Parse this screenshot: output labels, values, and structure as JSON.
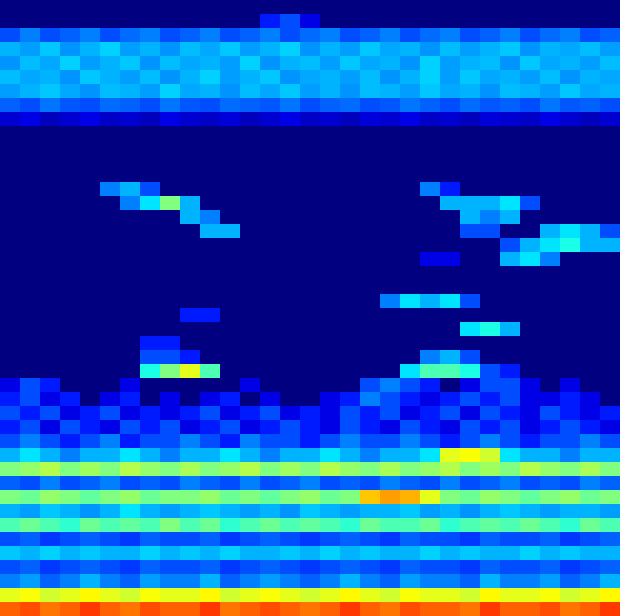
{
  "chart_data": {
    "type": "heatmap",
    "tick_labels": false,
    "xlim": [
      0,
      31
    ],
    "ylim": [
      0,
      44
    ],
    "color_range": [
      0,
      1
    ],
    "cells": [
      [
        0,
        0,
        0,
        0,
        0,
        0,
        0,
        0,
        0,
        0,
        0,
        0,
        0,
        0,
        0,
        0,
        0,
        0,
        0,
        0,
        0,
        0,
        0,
        0,
        0,
        0,
        0,
        0,
        0,
        0,
        0
      ],
      [
        0,
        0,
        0,
        0,
        0,
        0,
        0,
        0,
        0,
        0,
        0,
        0,
        0,
        0.15,
        0.2,
        0.1,
        0,
        0,
        0,
        0,
        0,
        0,
        0,
        0,
        0,
        0,
        0,
        0,
        0,
        0,
        0
      ],
      [
        0.2,
        0.25,
        0.2,
        0.22,
        0.25,
        0.2,
        0.23,
        0.25,
        0.2,
        0.22,
        0.25,
        0.2,
        0.22,
        0.25,
        0.2,
        0.23,
        0.25,
        0.2,
        0.22,
        0.25,
        0.2,
        0.23,
        0.25,
        0.2,
        0.22,
        0.25,
        0.2,
        0.23,
        0.25,
        0.2,
        0.22
      ],
      [
        0.3,
        0.28,
        0.32,
        0.27,
        0.3,
        0.33,
        0.28,
        0.3,
        0.27,
        0.31,
        0.29,
        0.32,
        0.28,
        0.3,
        0.33,
        0.27,
        0.3,
        0.28,
        0.32,
        0.29,
        0.3,
        0.27,
        0.31,
        0.28,
        0.3,
        0.32,
        0.27,
        0.3,
        0.29,
        0.31,
        0.28
      ],
      [
        0.27,
        0.31,
        0.29,
        0.33,
        0.28,
        0.3,
        0.32,
        0.27,
        0.31,
        0.29,
        0.3,
        0.28,
        0.33,
        0.27,
        0.3,
        0.31,
        0.28,
        0.32,
        0.29,
        0.3,
        0.27,
        0.33,
        0.28,
        0.3,
        0.31,
        0.27,
        0.32,
        0.29,
        0.3,
        0.28,
        0.31
      ],
      [
        0.31,
        0.29,
        0.3,
        0.27,
        0.32,
        0.3,
        0.28,
        0.31,
        0.27,
        0.3,
        0.33,
        0.28,
        0.3,
        0.32,
        0.27,
        0.29,
        0.3,
        0.28,
        0.31,
        0.27,
        0.3,
        0.33,
        0.28,
        0.32,
        0.29,
        0.3,
        0.28,
        0.31,
        0.27,
        0.3,
        0.29
      ],
      [
        0.28,
        0.3,
        0.32,
        0.29,
        0.27,
        0.31,
        0.3,
        0.28,
        0.33,
        0.29,
        0.3,
        0.27,
        0.31,
        0.29,
        0.32,
        0.28,
        0.3,
        0.27,
        0.31,
        0.3,
        0.28,
        0.32,
        0.29,
        0.3,
        0.27,
        0.31,
        0.3,
        0.28,
        0.32,
        0.29,
        0.3
      ],
      [
        0.22,
        0.2,
        0.24,
        0.21,
        0.2,
        0.23,
        0.22,
        0.2,
        0.24,
        0.21,
        0.2,
        0.23,
        0.22,
        0.21,
        0.24,
        0.2,
        0.22,
        0.23,
        0.2,
        0.21,
        0.24,
        0.22,
        0.2,
        0.23,
        0.21,
        0.22,
        0.2,
        0.24,
        0.21,
        0.22,
        0.2
      ],
      [
        0.08,
        0.1,
        0.06,
        0.08,
        0.1,
        0.07,
        0.08,
        0.06,
        0.1,
        0.08,
        0.07,
        0.09,
        0.06,
        0.08,
        0.1,
        0.07,
        0.08,
        0.06,
        0.09,
        0.08,
        0.1,
        0.07,
        0.08,
        0.06,
        0.09,
        0.08,
        0.07,
        0.1,
        0.08,
        0.06,
        0.08
      ],
      [
        0,
        0,
        0,
        0,
        0,
        0,
        0,
        0,
        0,
        0,
        0,
        0,
        0,
        0,
        0,
        0,
        0,
        0,
        0,
        0,
        0,
        0,
        0,
        0,
        0,
        0,
        0,
        0,
        0,
        0,
        0
      ],
      [
        0,
        0,
        0,
        0,
        0,
        0,
        0,
        0,
        0,
        0,
        0,
        0,
        0,
        0,
        0,
        0,
        0,
        0,
        0,
        0,
        0,
        0,
        0,
        0,
        0,
        0,
        0,
        0,
        0,
        0,
        0
      ],
      [
        0,
        0,
        0,
        0,
        0,
        0,
        0,
        0,
        0,
        0,
        0,
        0,
        0,
        0,
        0,
        0,
        0,
        0,
        0,
        0,
        0,
        0,
        0,
        0,
        0,
        0,
        0,
        0,
        0,
        0,
        0
      ],
      [
        0,
        0,
        0,
        0,
        0,
        0,
        0,
        0,
        0,
        0,
        0,
        0,
        0,
        0,
        0,
        0,
        0,
        0,
        0,
        0,
        0,
        0,
        0,
        0,
        0,
        0,
        0,
        0,
        0,
        0,
        0
      ],
      [
        0,
        0,
        0,
        0,
        0,
        0.25,
        0.3,
        0.2,
        0,
        0,
        0,
        0,
        0,
        0,
        0,
        0,
        0,
        0,
        0,
        0,
        0,
        0.25,
        0.15,
        0,
        0,
        0,
        0,
        0,
        0,
        0,
        0
      ],
      [
        0,
        0,
        0,
        0,
        0,
        0,
        0.25,
        0.35,
        0.5,
        0.3,
        0,
        0,
        0,
        0,
        0,
        0,
        0,
        0,
        0,
        0,
        0,
        0,
        0.3,
        0.3,
        0.3,
        0.35,
        0.2,
        0,
        0,
        0,
        0
      ],
      [
        0,
        0,
        0,
        0,
        0,
        0,
        0,
        0,
        0,
        0.3,
        0.25,
        0,
        0,
        0,
        0,
        0,
        0,
        0,
        0,
        0,
        0,
        0,
        0,
        0.3,
        0.25,
        0.3,
        0,
        0,
        0,
        0,
        0
      ],
      [
        0,
        0,
        0,
        0,
        0,
        0,
        0,
        0,
        0,
        0,
        0.3,
        0.3,
        0,
        0,
        0,
        0,
        0,
        0,
        0,
        0,
        0,
        0,
        0,
        0.2,
        0.2,
        0,
        0,
        0.3,
        0.35,
        0.3,
        0.2
      ],
      [
        0,
        0,
        0,
        0,
        0,
        0,
        0,
        0,
        0,
        0,
        0,
        0,
        0,
        0,
        0,
        0,
        0,
        0,
        0,
        0,
        0,
        0,
        0,
        0,
        0,
        0.2,
        0.3,
        0.35,
        0.4,
        0.3,
        0.3
      ],
      [
        0,
        0,
        0,
        0,
        0,
        0,
        0,
        0,
        0,
        0,
        0,
        0,
        0,
        0,
        0,
        0,
        0,
        0,
        0,
        0,
        0,
        0.1,
        0.1,
        0,
        0,
        0.3,
        0.35,
        0.25,
        0,
        0,
        0
      ],
      [
        0,
        0,
        0,
        0,
        0,
        0,
        0,
        0,
        0,
        0,
        0,
        0,
        0,
        0,
        0,
        0,
        0,
        0,
        0,
        0,
        0,
        0,
        0,
        0,
        0,
        0,
        0,
        0,
        0,
        0,
        0
      ],
      [
        0,
        0,
        0,
        0,
        0,
        0,
        0,
        0,
        0,
        0,
        0,
        0,
        0,
        0,
        0,
        0,
        0,
        0,
        0,
        0,
        0,
        0,
        0,
        0,
        0,
        0,
        0,
        0,
        0,
        0,
        0
      ],
      [
        0,
        0,
        0,
        0,
        0,
        0,
        0,
        0,
        0,
        0,
        0,
        0,
        0,
        0,
        0,
        0,
        0,
        0,
        0,
        0.25,
        0.35,
        0.3,
        0.35,
        0.2,
        0,
        0,
        0,
        0,
        0,
        0,
        0
      ],
      [
        0,
        0,
        0,
        0,
        0,
        0,
        0,
        0,
        0,
        0.15,
        0.15,
        0,
        0,
        0,
        0,
        0,
        0,
        0,
        0,
        0,
        0,
        0,
        0,
        0,
        0,
        0,
        0,
        0,
        0,
        0,
        0
      ],
      [
        0,
        0,
        0,
        0,
        0,
        0,
        0,
        0,
        0,
        0,
        0,
        0,
        0,
        0,
        0,
        0,
        0,
        0,
        0,
        0,
        0,
        0,
        0,
        0.35,
        0.4,
        0.3,
        0,
        0,
        0,
        0,
        0
      ],
      [
        0,
        0,
        0,
        0,
        0,
        0,
        0,
        0.15,
        0.15,
        0,
        0,
        0,
        0,
        0,
        0,
        0,
        0,
        0,
        0,
        0,
        0,
        0,
        0,
        0,
        0,
        0,
        0,
        0,
        0,
        0,
        0
      ],
      [
        0,
        0,
        0,
        0,
        0,
        0,
        0,
        0.2,
        0.2,
        0.15,
        0,
        0,
        0,
        0,
        0,
        0,
        0,
        0,
        0,
        0,
        0,
        0.25,
        0.3,
        0.2,
        0,
        0,
        0,
        0,
        0,
        0,
        0
      ],
      [
        0,
        0,
        0,
        0,
        0,
        0,
        0,
        0.4,
        0.5,
        0.6,
        0.45,
        0,
        0,
        0,
        0,
        0,
        0,
        0,
        0,
        0,
        0.35,
        0.45,
        0.45,
        0.4,
        0.2,
        0.15,
        0,
        0,
        0,
        0,
        0
      ],
      [
        0.1,
        0.2,
        0.15,
        0,
        0,
        0,
        0.1,
        0,
        0,
        0,
        0,
        0,
        0.1,
        0,
        0,
        0,
        0,
        0,
        0.2,
        0.25,
        0.2,
        0.15,
        0,
        0.1,
        0.2,
        0.2,
        0.1,
        0,
        0.1,
        0,
        0
      ],
      [
        0.15,
        0.2,
        0.1,
        0.15,
        0,
        0.1,
        0.15,
        0,
        0.1,
        0,
        0.1,
        0.15,
        0,
        0.1,
        0,
        0,
        0.1,
        0.15,
        0.25,
        0.2,
        0.15,
        0.1,
        0.15,
        0.2,
        0.15,
        0.2,
        0.1,
        0.1,
        0.15,
        0.1,
        0
      ],
      [
        0.2,
        0.15,
        0.2,
        0.1,
        0.15,
        0.2,
        0.1,
        0.15,
        0.1,
        0.15,
        0.2,
        0.1,
        0.15,
        0.2,
        0.1,
        0.15,
        0.1,
        0.2,
        0.15,
        0.2,
        0.1,
        0.15,
        0.2,
        0.1,
        0.2,
        0.15,
        0.1,
        0.2,
        0.15,
        0.1,
        0.15
      ],
      [
        0.15,
        0.2,
        0.1,
        0.2,
        0.15,
        0.1,
        0.2,
        0.15,
        0.2,
        0.1,
        0.15,
        0.2,
        0.1,
        0.15,
        0.2,
        0.15,
        0.1,
        0.2,
        0.15,
        0.1,
        0.2,
        0.15,
        0.1,
        0.2,
        0.15,
        0.2,
        0.1,
        0.15,
        0.2,
        0.15,
        0.1
      ],
      [
        0.2,
        0.25,
        0.2,
        0.15,
        0.2,
        0.25,
        0.15,
        0.2,
        0.2,
        0.25,
        0.2,
        0.15,
        0.25,
        0.2,
        0.2,
        0.15,
        0.2,
        0.25,
        0.2,
        0.2,
        0.25,
        0.2,
        0.15,
        0.2,
        0.25,
        0.2,
        0.15,
        0.2,
        0.2,
        0.25,
        0.2
      ],
      [
        0.3,
        0.35,
        0.3,
        0.25,
        0.3,
        0.3,
        0.35,
        0.3,
        0.25,
        0.3,
        0.3,
        0.35,
        0.3,
        0.25,
        0.3,
        0.3,
        0.35,
        0.3,
        0.25,
        0.3,
        0.3,
        0.35,
        0.6,
        0.62,
        0.58,
        0.35,
        0.3,
        0.3,
        0.25,
        0.3,
        0.3
      ],
      [
        0.5,
        0.52,
        0.55,
        0.5,
        0.53,
        0.5,
        0.55,
        0.52,
        0.5,
        0.54,
        0.5,
        0.52,
        0.55,
        0.5,
        0.53,
        0.5,
        0.55,
        0.52,
        0.5,
        0.54,
        0.5,
        0.52,
        0.55,
        0.5,
        0.53,
        0.5,
        0.55,
        0.52,
        0.5,
        0.54,
        0.5
      ],
      [
        0.22,
        0.2,
        0.25,
        0.2,
        0.22,
        0.25,
        0.2,
        0.22,
        0.2,
        0.25,
        0.22,
        0.2,
        0.25,
        0.2,
        0.22,
        0.25,
        0.2,
        0.22,
        0.2,
        0.25,
        0.22,
        0.2,
        0.25,
        0.2,
        0.22,
        0.25,
        0.2,
        0.22,
        0.2,
        0.25,
        0.22
      ],
      [
        0.5,
        0.48,
        0.52,
        0.5,
        0.47,
        0.5,
        0.52,
        0.48,
        0.5,
        0.5,
        0.52,
        0.48,
        0.5,
        0.47,
        0.5,
        0.52,
        0.48,
        0.5,
        0.68,
        0.72,
        0.7,
        0.6,
        0.5,
        0.48,
        0.52,
        0.5,
        0.47,
        0.5,
        0.52,
        0.48,
        0.5
      ],
      [
        0.3,
        0.28,
        0.32,
        0.3,
        0.27,
        0.3,
        0.35,
        0.3,
        0.28,
        0.3,
        0.32,
        0.3,
        0.28,
        0.3,
        0.27,
        0.32,
        0.3,
        0.28,
        0.3,
        0.3,
        0.32,
        0.28,
        0.3,
        0.27,
        0.3,
        0.32,
        0.3,
        0.28,
        0.3,
        0.3,
        0.28
      ],
      [
        0.45,
        0.48,
        0.45,
        0.42,
        0.48,
        0.45,
        0.47,
        0.45,
        0.5,
        0.45,
        0.48,
        0.42,
        0.45,
        0.48,
        0.45,
        0.47,
        0.45,
        0.42,
        0.48,
        0.45,
        0.45,
        0.48,
        0.42,
        0.45,
        0.47,
        0.45,
        0.48,
        0.45,
        0.42,
        0.48,
        0.45
      ],
      [
        0.2,
        0.22,
        0.18,
        0.2,
        0.22,
        0.2,
        0.18,
        0.22,
        0.2,
        0.2,
        0.22,
        0.18,
        0.2,
        0.22,
        0.2,
        0.18,
        0.2,
        0.22,
        0.2,
        0.18,
        0.22,
        0.2,
        0.2,
        0.18,
        0.22,
        0.2,
        0.2,
        0.22,
        0.18,
        0.2,
        0.22
      ],
      [
        0.32,
        0.3,
        0.33,
        0.3,
        0.32,
        0.3,
        0.3,
        0.33,
        0.3,
        0.32,
        0.3,
        0.33,
        0.3,
        0.3,
        0.32,
        0.3,
        0.33,
        0.3,
        0.32,
        0.3,
        0.3,
        0.33,
        0.3,
        0.32,
        0.3,
        0.3,
        0.33,
        0.3,
        0.32,
        0.3,
        0.3
      ],
      [
        0.2,
        0.22,
        0.18,
        0.2,
        0.22,
        0.2,
        0.18,
        0.22,
        0.2,
        0.2,
        0.22,
        0.18,
        0.2,
        0.22,
        0.2,
        0.18,
        0.2,
        0.22,
        0.2,
        0.18,
        0.22,
        0.2,
        0.2,
        0.18,
        0.22,
        0.2,
        0.2,
        0.22,
        0.18,
        0.2,
        0.22
      ],
      [
        0.25,
        0.28,
        0.22,
        0.25,
        0.3,
        0.25,
        0.22,
        0.28,
        0.25,
        0.25,
        0.3,
        0.22,
        0.25,
        0.28,
        0.25,
        0.22,
        0.25,
        0.3,
        0.25,
        0.22,
        0.28,
        0.25,
        0.25,
        0.22,
        0.3,
        0.25,
        0.25,
        0.28,
        0.22,
        0.25,
        0.3
      ],
      [
        0.6,
        0.62,
        0.58,
        0.6,
        0.63,
        0.6,
        0.58,
        0.62,
        0.6,
        0.6,
        0.63,
        0.58,
        0.6,
        0.62,
        0.6,
        0.58,
        0.6,
        0.63,
        0.6,
        0.58,
        0.62,
        0.6,
        0.6,
        0.58,
        0.63,
        0.6,
        0.6,
        0.62,
        0.58,
        0.6,
        0.63
      ],
      [
        0.78,
        0.8,
        0.76,
        0.78,
        0.82,
        0.78,
        0.76,
        0.8,
        0.78,
        0.78,
        0.82,
        0.76,
        0.78,
        0.8,
        0.78,
        0.76,
        0.78,
        0.82,
        0.78,
        0.76,
        0.8,
        0.78,
        0.78,
        0.76,
        0.82,
        0.78,
        0.78,
        0.8,
        0.76,
        0.78,
        0.82
      ]
    ]
  }
}
